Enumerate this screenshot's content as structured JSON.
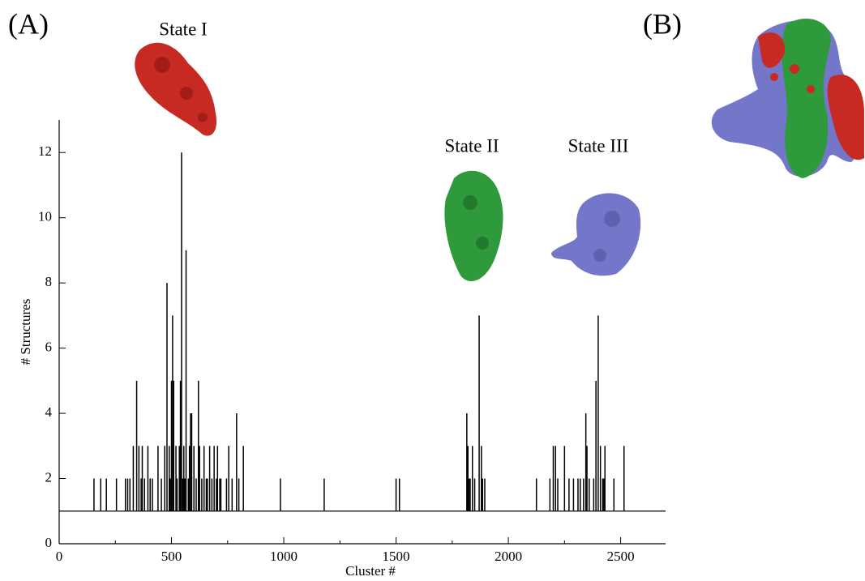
{
  "chart_data": {
    "type": "impulse",
    "xlabel": "Cluster #",
    "ylabel": "# Structures",
    "annotations": [
      "(A)",
      "(B)",
      "State I",
      "State II",
      "State III"
    ],
    "baseline": 1,
    "x": [
      155,
      185,
      210,
      255,
      295,
      305,
      315,
      330,
      345,
      355,
      365,
      370,
      380,
      395,
      405,
      415,
      440,
      455,
      470,
      480,
      490,
      495,
      500,
      505,
      510,
      520,
      525,
      535,
      540,
      545,
      550,
      555,
      560,
      565,
      575,
      580,
      585,
      590,
      600,
      610,
      620,
      625,
      635,
      645,
      655,
      660,
      670,
      680,
      690,
      700,
      705,
      715,
      720,
      745,
      755,
      770,
      790,
      800,
      820,
      985,
      1180,
      1500,
      1515,
      1815,
      1820,
      1825,
      1830,
      1840,
      1850,
      1870,
      1880,
      1885,
      1895,
      2125,
      2185,
      2200,
      2210,
      2220,
      2250,
      2270,
      2290,
      2310,
      2320,
      2335,
      2345,
      2350,
      2360,
      2380,
      2390,
      2400,
      2410,
      2420,
      2425,
      2430,
      2470,
      2515
    ],
    "values": [
      2,
      2,
      2,
      2,
      2,
      2,
      2,
      3,
      5,
      3,
      2,
      3,
      2,
      3,
      2,
      2,
      3,
      2,
      3,
      8,
      3,
      2,
      5,
      7,
      5,
      3,
      2,
      3,
      5,
      12,
      2,
      3,
      2,
      9,
      2,
      3,
      4,
      4,
      3,
      2,
      5,
      3,
      2,
      3,
      2,
      2,
      3,
      2,
      3,
      2,
      3,
      2,
      2,
      2,
      3,
      2,
      4,
      2,
      3,
      2,
      2,
      2,
      2,
      4,
      3,
      2,
      2,
      3,
      2,
      7,
      3,
      2,
      2,
      2,
      2,
      3,
      3,
      2,
      3,
      2,
      2,
      2,
      2,
      2,
      4,
      3,
      2,
      2,
      5,
      7,
      3,
      2,
      2,
      3,
      2,
      3
    ],
    "color": "#000000",
    "xlim": [
      0,
      2700
    ],
    "xticks": [
      0,
      500,
      1000,
      1500,
      2000,
      2500
    ],
    "xminorticks": [
      250,
      750,
      1250,
      1750,
      2250
    ],
    "ylim": [
      0,
      13
    ],
    "yticks": [
      0,
      2,
      4,
      6,
      8,
      10,
      12
    ],
    "grid": false
  }
}
